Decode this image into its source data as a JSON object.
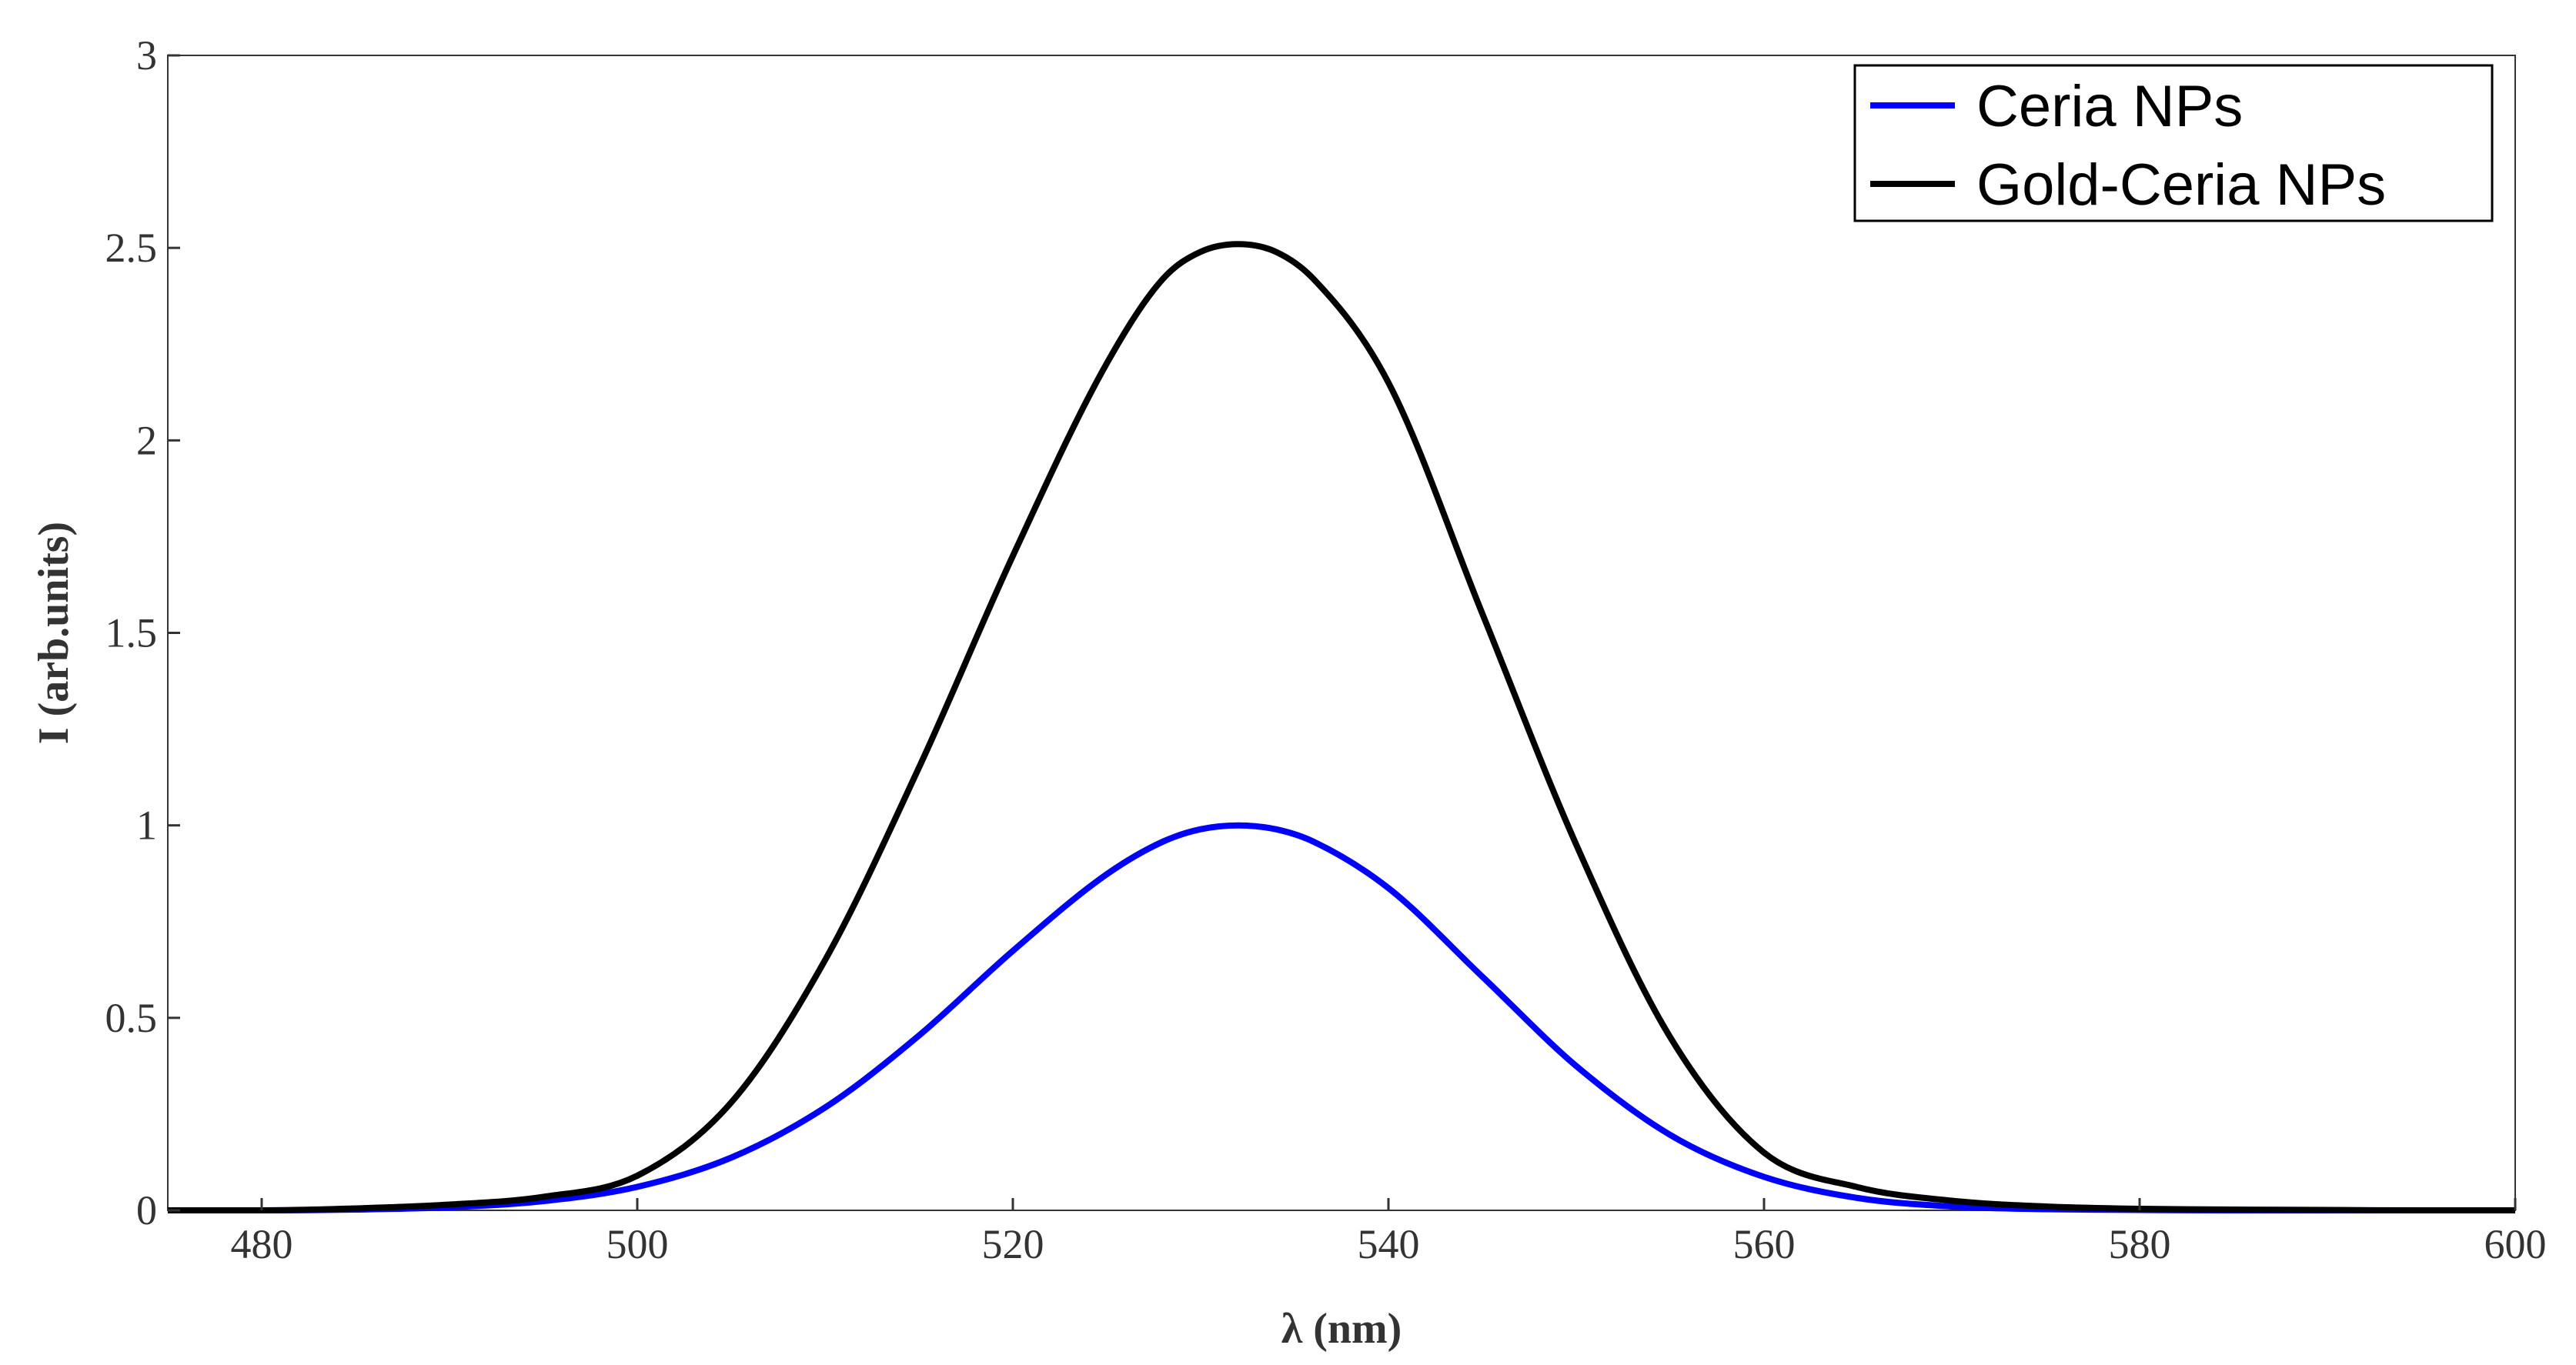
{
  "chart_data": {
    "type": "line",
    "xlabel": "λ (nm)",
    "ylabel": "I (arb.units)",
    "xlim": [
      475,
      600
    ],
    "ylim": [
      0,
      3
    ],
    "x_ticks": [
      "480",
      "500",
      "520",
      "540",
      "560",
      "580",
      "600"
    ],
    "y_ticks": [
      "0",
      "0.5",
      "1",
      "1.5",
      "2",
      "2.5",
      "3"
    ],
    "grid": false,
    "legend_position": "top-right",
    "x": [
      475,
      480,
      485,
      490,
      495,
      500,
      505,
      510,
      515,
      520,
      525,
      528,
      530,
      532,
      534,
      536,
      540,
      545,
      550,
      555,
      560,
      565,
      570,
      575,
      580,
      585,
      590,
      595,
      600
    ],
    "series": [
      {
        "name": "Ceria NPs",
        "color": "#0000ff",
        "values": [
          0.0,
          0.0,
          0.002,
          0.008,
          0.024,
          0.061,
          0.137,
          0.267,
          0.454,
          0.674,
          0.873,
          0.958,
          0.99,
          1.0,
          0.99,
          0.958,
          0.837,
          0.607,
          0.375,
          0.196,
          0.087,
          0.032,
          0.01,
          0.003,
          0.001,
          0.0,
          0.0,
          0.0,
          0.0
        ]
      },
      {
        "name": "Gold-Ceria NPs",
        "color": "#000000",
        "values": [
          0.0,
          0.0,
          0.005,
          0.015,
          0.035,
          0.09,
          0.28,
          0.65,
          1.15,
          1.7,
          2.2,
          2.42,
          2.49,
          2.51,
          2.49,
          2.42,
          2.15,
          1.55,
          0.95,
          0.45,
          0.15,
          0.06,
          0.025,
          0.01,
          0.004,
          0.002,
          0.001,
          0.0,
          0.0
        ]
      }
    ]
  }
}
